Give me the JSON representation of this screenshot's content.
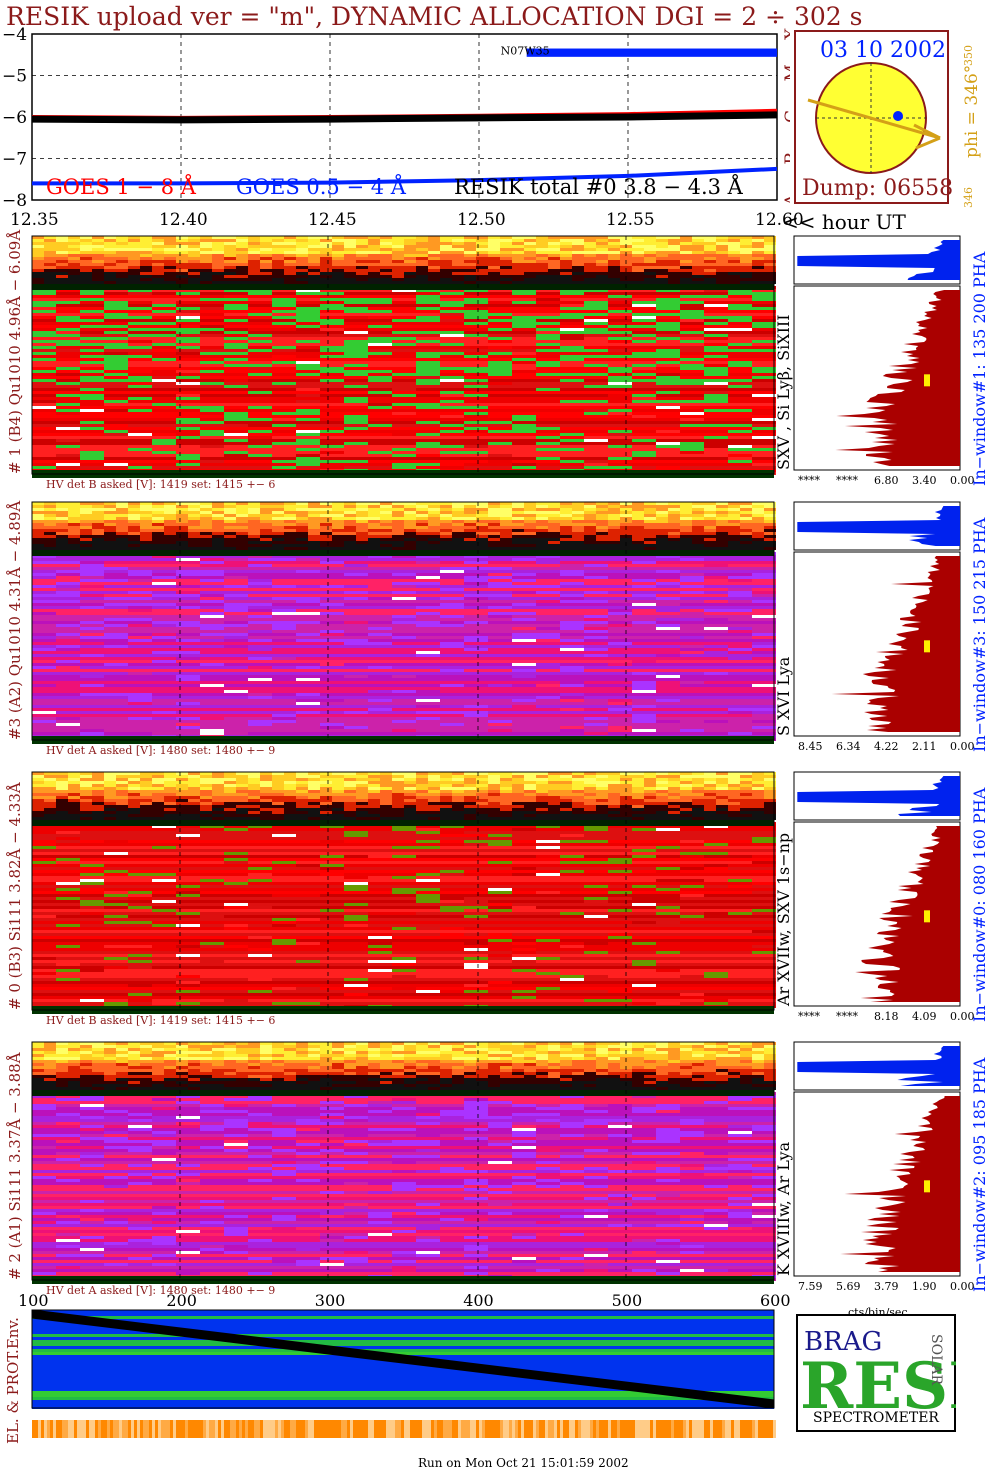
{
  "title": "RESIK upload ver = \"m\", DYNAMIC ALLOCATION  DGI =   2 ÷ 302 s",
  "goes": {
    "yticks": [
      "−4",
      "−5",
      "−6",
      "−7",
      "−8"
    ],
    "class_labels": [
      "X",
      "M",
      "C",
      "B",
      "A"
    ],
    "legend": [
      "GOES 1 − 8 Å",
      "GOES 0.5 − 4 Å",
      "RESIK total #0  3.8 − 4.3 Å"
    ],
    "event_label": "N07W35",
    "xticks": [
      "12.35",
      "12.40",
      "12.45",
      "12.50",
      "12.55",
      "12.60"
    ],
    "x_unit_label": "<< hour UT",
    "colors": {
      "goes_long": "#ff0000",
      "goes_short": "#0022ff",
      "resik": "#000000",
      "text": "#8b1a1a"
    },
    "series": [
      {
        "name": "GOES 1 − 8 Å",
        "x": [
          12.35,
          12.4,
          12.45,
          12.5,
          12.55,
          12.6
        ],
        "y": [
          -6.0,
          -6.02,
          -6.0,
          -5.97,
          -5.93,
          -5.85
        ]
      },
      {
        "name": "GOES 0.5 − 4 Å",
        "x": [
          12.35,
          12.4,
          12.45,
          12.5,
          12.55,
          12.6
        ],
        "y": [
          -7.6,
          -7.6,
          -7.58,
          -7.52,
          -7.42,
          -7.25
        ]
      },
      {
        "name": "RESIK total #0  3.8 − 4.3 Å",
        "x": [
          12.35,
          12.4,
          12.45,
          12.5,
          12.55,
          12.6
        ],
        "y": [
          -6.05,
          -6.07,
          -6.05,
          -6.02,
          -6.0,
          -5.95
        ]
      }
    ],
    "event_x_range": [
      12.516,
      12.6
    ]
  },
  "sun": {
    "date": "03 10 2002",
    "dump": "Dump: 06558",
    "phi_label": "phi = 346°",
    "phi_small_top": "350",
    "phi_small_bottom": "346"
  },
  "channels": [
    {
      "ylabel": "# 1 (B4) Qu1010 4.96Å − 6.09Å",
      "lines": "SXV , Si Lyβ, SiXIII",
      "window": "In−window#1:  135 200 PHA",
      "hv": "HV det B asked [V]:  1419 set:  1415 +−    6",
      "hist_ticks": [
        "****",
        "****",
        "6.80",
        "3.40",
        "0.00"
      ],
      "base": "red",
      "accent": "green",
      "strong": 0.35
    },
    {
      "ylabel": "#3 (A2) Qu1010  4.31Å − 4.89Å",
      "lines": "S XVI Lya",
      "window": "In−window#3:  150 215 PHA",
      "hv": "HV det A asked [V]:  1480 set:  1480 +−    9",
      "hist_ticks": [
        "8.45",
        "6.34",
        "4.22",
        "2.11",
        "0.00"
      ],
      "base": "magenta",
      "accent": "purple",
      "strong": 0.2
    },
    {
      "ylabel": "# 0 (B3) Si111  3.82Å − 4.33Å",
      "lines": "Ar XVIIw,  SXV 1s−np",
      "window": "In−window#0:  080 160 PHA",
      "hv": "HV det B asked [V]:  1419 set:  1415 +−    6",
      "hist_ticks": [
        "****",
        "****",
        "8.18",
        "4.09",
        "0.00"
      ],
      "base": "red",
      "accent": "olive",
      "strong": 0.1
    },
    {
      "ylabel": "# 2 (A1) Si111  3.37Å − 3.88Å",
      "lines": "K XVIIIw, Ar Lya",
      "window": "In−window#2:  095 185 PHA",
      "hv": "HV det A asked [V]:  1480 set:  1480 +−    9",
      "hist_ticks": [
        "7.59",
        "5.69",
        "3.79",
        "1.90",
        "0.00"
      ],
      "base": "magenta",
      "accent": "purple",
      "strong": 0.2
    }
  ],
  "hist_xlabel": "cts/bin/sec",
  "env": {
    "ylabel": "EL. & PROT.Env.",
    "xticks": [
      "100",
      "200",
      "300",
      "400",
      "500",
      "600"
    ],
    "x": [
      100,
      600
    ],
    "diag": [
      1.0,
      0.0
    ]
  },
  "logo": {
    "letters": "RESIK",
    "top_letters": "BRAG",
    "side": "SOLAR",
    "caption": "SPECTROMETER"
  },
  "footer": "Run on Mon Oct 21 15:01:59 2002"
}
